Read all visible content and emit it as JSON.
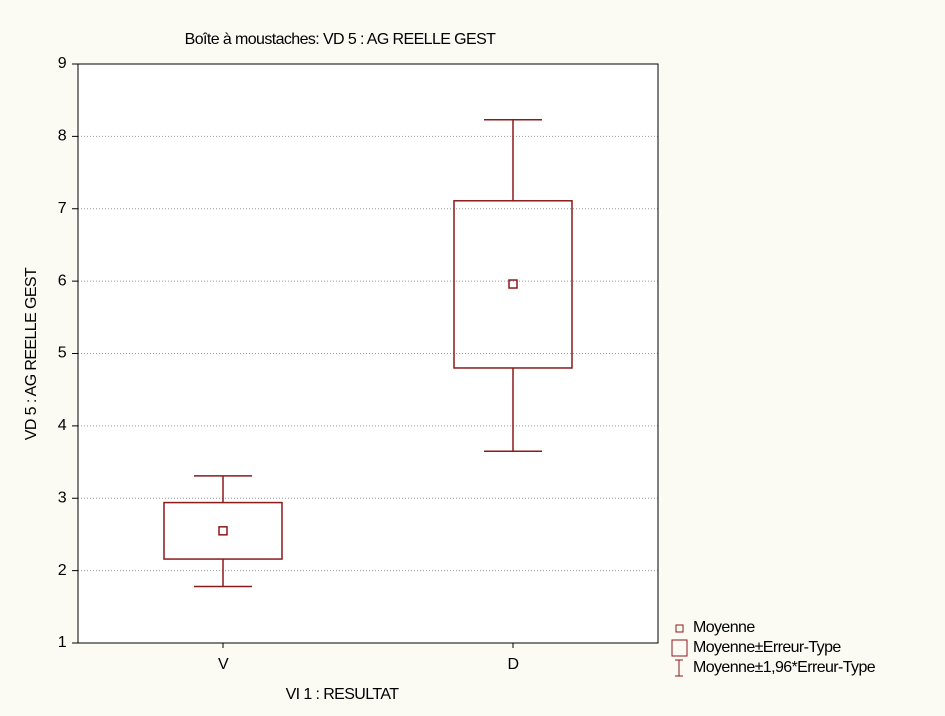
{
  "chart_data": {
    "type": "box",
    "title": "Boîte à moustaches: VD 5 : AG REELLE GEST",
    "x_label": "VI 1 : RESULTAT",
    "y_label": "VD 5 : AG REELLE GEST",
    "categories": [
      "V",
      "D"
    ],
    "mean": [
      2.55,
      5.96
    ],
    "se_low": [
      2.16,
      4.8
    ],
    "se_high": [
      2.94,
      7.11
    ],
    "ci_low": [
      1.78,
      3.65
    ],
    "ci_high": [
      3.31,
      8.23
    ],
    "legend": [
      "Moyenne",
      "Moyenne±Erreur-Type",
      "Moyenne±1,96*Erreur-Type"
    ],
    "color": "#8b1a1a",
    "ylim": [
      1,
      9
    ],
    "yticks": [
      1,
      2,
      3,
      4,
      5,
      6,
      7,
      8,
      9
    ],
    "grid": true
  }
}
